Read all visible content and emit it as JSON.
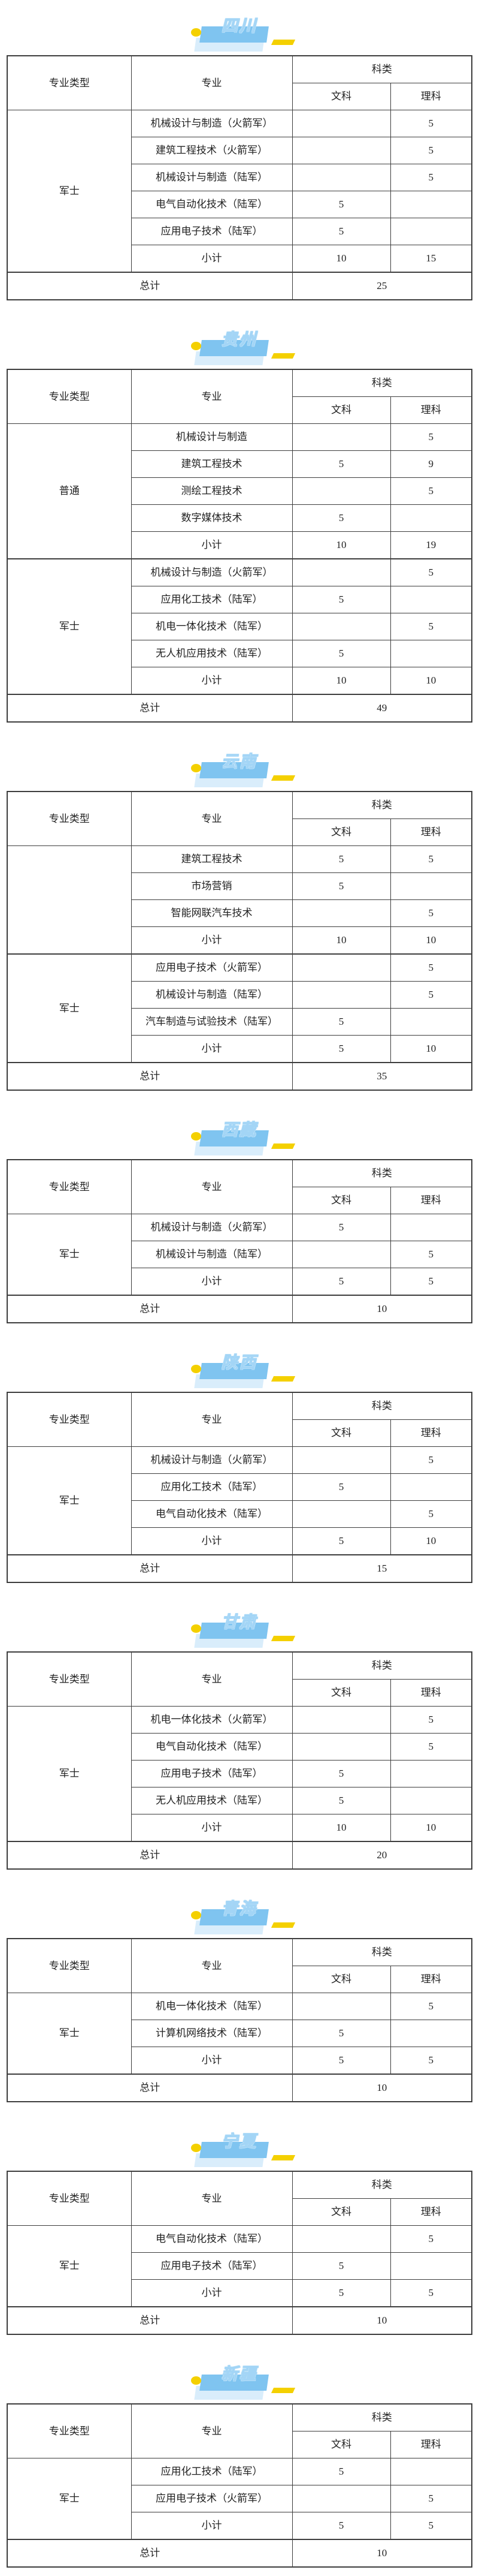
{
  "common": {
    "col_major_type": "专业类型",
    "col_major": "专业",
    "col_subject": "科类",
    "col_liberal_arts": "文科",
    "col_science": "理科",
    "subtotal_label": "小计",
    "total_label": "总计"
  },
  "colors": {
    "badge_blue": "#7fc4f0",
    "badge_shadow_blue": "#d9edfb",
    "badge_yellow": "#f4d000",
    "table_border": "#3d3d3d"
  },
  "sections": [
    {
      "id": "sichuan",
      "province": "四川",
      "groups": [
        {
          "type": "军士",
          "rows": [
            {
              "major": "机械设计与制造（火箭军）",
              "wen": "",
              "li": "5"
            },
            {
              "major": "建筑工程技术（火箭军）",
              "wen": "",
              "li": "5"
            },
            {
              "major": "机械设计与制造（陆军）",
              "wen": "",
              "li": "5"
            },
            {
              "major": "电气自动化技术（陆军）",
              "wen": "5",
              "li": ""
            },
            {
              "major": "应用电子技术（陆军）",
              "wen": "5",
              "li": ""
            }
          ],
          "subtotal": {
            "wen": "10",
            "li": "15"
          }
        }
      ],
      "total": "25"
    },
    {
      "id": "guizhou",
      "province": "贵州",
      "groups": [
        {
          "type": "普通",
          "rows": [
            {
              "major": "机械设计与制造",
              "wen": "",
              "li": "5"
            },
            {
              "major": "建筑工程技术",
              "wen": "5",
              "li": "9"
            },
            {
              "major": "测绘工程技术",
              "wen": "",
              "li": "5"
            },
            {
              "major": "数字媒体技术",
              "wen": "5",
              "li": ""
            }
          ],
          "subtotal": {
            "wen": "10",
            "li": "19"
          }
        },
        {
          "type": "军士",
          "rows": [
            {
              "major": "机械设计与制造（火箭军）",
              "wen": "",
              "li": "5"
            },
            {
              "major": "应用化工技术（陆军）",
              "wen": "5",
              "li": ""
            },
            {
              "major": "机电一体化技术（陆军）",
              "wen": "",
              "li": "5"
            },
            {
              "major": "无人机应用技术（陆军）",
              "wen": "5",
              "li": ""
            }
          ],
          "subtotal": {
            "wen": "10",
            "li": "10"
          }
        }
      ],
      "total": "49"
    },
    {
      "id": "yunnan",
      "province": "云南",
      "groups": [
        {
          "type": "",
          "rows": [
            {
              "major": "建筑工程技术",
              "wen": "5",
              "li": "5"
            },
            {
              "major": "市场营销",
              "wen": "5",
              "li": ""
            },
            {
              "major": "智能网联汽车技术",
              "wen": "",
              "li": "5"
            }
          ],
          "subtotal": {
            "wen": "10",
            "li": "10"
          }
        },
        {
          "type": "军士",
          "rows": [
            {
              "major": "应用电子技术（火箭军）",
              "wen": "",
              "li": "5"
            },
            {
              "major": "机械设计与制造（陆军）",
              "wen": "",
              "li": "5"
            },
            {
              "major": "汽车制造与试验技术（陆军）",
              "wen": "5",
              "li": ""
            }
          ],
          "subtotal": {
            "wen": "5",
            "li": "10"
          }
        }
      ],
      "total": "35"
    },
    {
      "id": "xizang",
      "province": "西藏",
      "groups": [
        {
          "type": "军士",
          "rows": [
            {
              "major": "机械设计与制造（火箭军）",
              "wen": "5",
              "li": ""
            },
            {
              "major": "机械设计与制造（陆军）",
              "wen": "",
              "li": "5"
            }
          ],
          "subtotal": {
            "wen": "5",
            "li": "5"
          }
        }
      ],
      "total": "10"
    },
    {
      "id": "shaanxi",
      "province": "陕西",
      "groups": [
        {
          "type": "军士",
          "rows": [
            {
              "major": "机械设计与制造（火箭军）",
              "wen": "",
              "li": "5"
            },
            {
              "major": "应用化工技术（陆军）",
              "wen": "5",
              "li": ""
            },
            {
              "major": "电气自动化技术（陆军）",
              "wen": "",
              "li": "5"
            }
          ],
          "subtotal": {
            "wen": "5",
            "li": "10"
          }
        }
      ],
      "total": "15"
    },
    {
      "id": "gansu",
      "province": "甘肃",
      "groups": [
        {
          "type": "军士",
          "rows": [
            {
              "major": "机电一体化技术（火箭军）",
              "wen": "",
              "li": "5"
            },
            {
              "major": "电气自动化技术（陆军）",
              "wen": "",
              "li": "5"
            },
            {
              "major": "应用电子技术（陆军）",
              "wen": "5",
              "li": ""
            },
            {
              "major": "无人机应用技术（陆军）",
              "wen": "5",
              "li": ""
            }
          ],
          "subtotal": {
            "wen": "10",
            "li": "10"
          }
        }
      ],
      "total": "20"
    },
    {
      "id": "qinghai",
      "province": "青海",
      "groups": [
        {
          "type": "军士",
          "rows": [
            {
              "major": "机电一体化技术（陆军）",
              "wen": "",
              "li": "5"
            },
            {
              "major": "计算机网络技术（陆军）",
              "wen": "5",
              "li": ""
            }
          ],
          "subtotal": {
            "wen": "5",
            "li": "5"
          }
        }
      ],
      "total": "10"
    },
    {
      "id": "ningxia",
      "province": "宁夏",
      "groups": [
        {
          "type": "军士",
          "rows": [
            {
              "major": "电气自动化技术（陆军）",
              "wen": "",
              "li": "5"
            },
            {
              "major": "应用电子技术（陆军）",
              "wen": "5",
              "li": ""
            }
          ],
          "subtotal": {
            "wen": "5",
            "li": "5"
          }
        }
      ],
      "total": "10"
    },
    {
      "id": "xinjiang",
      "province": "新疆",
      "groups": [
        {
          "type": "军士",
          "rows": [
            {
              "major": "应用化工技术（陆军）",
              "wen": "5",
              "li": ""
            },
            {
              "major": "应用电子技术（火箭军）",
              "wen": "",
              "li": "5"
            }
          ],
          "subtotal": {
            "wen": "5",
            "li": "5"
          }
        }
      ],
      "total": "10"
    }
  ]
}
